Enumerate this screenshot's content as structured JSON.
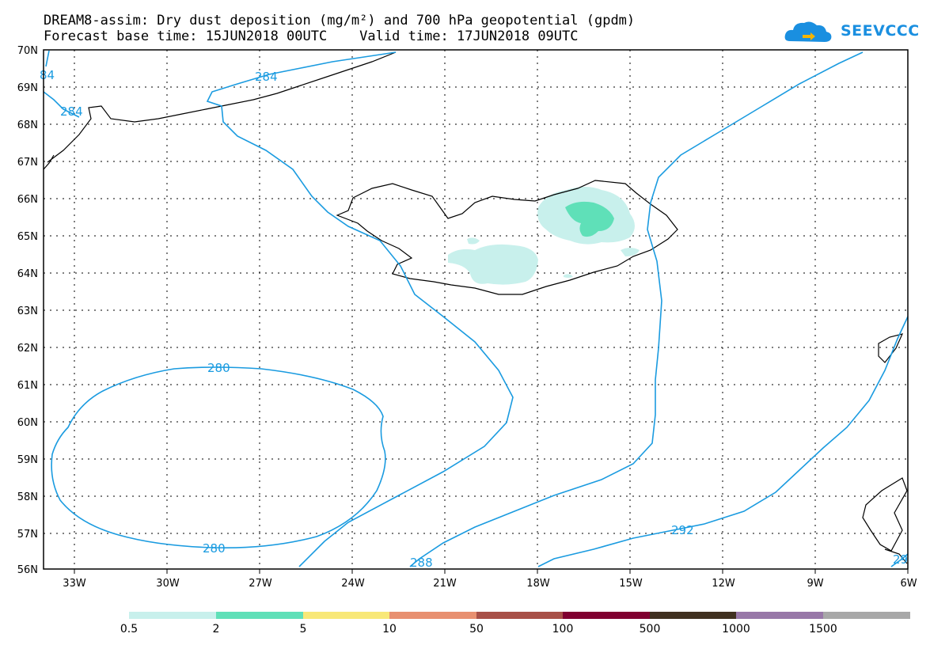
{
  "title": {
    "line1": "DREAM8-assim: Dry dust deposition (mg/m²) and 700 hPa geopotential (gpdm)",
    "line2": "Forecast base time: 15JUN2018 00UTC    Valid time: 17JUN2018 09UTC"
  },
  "logo": {
    "text": "SEEVCCC",
    "icon": "cloud-icon",
    "color": "#1a8fe0"
  },
  "map": {
    "lat_labels": [
      "70N",
      "69N",
      "68N",
      "67N",
      "66N",
      "65N",
      "64N",
      "63N",
      "62N",
      "61N",
      "60N",
      "59N",
      "58N",
      "57N",
      "56N"
    ],
    "lon_labels": [
      "33W",
      "30W",
      "27W",
      "24W",
      "21W",
      "18W",
      "15W",
      "12W",
      "9W",
      "6W"
    ],
    "contour_color": "#1a9be0",
    "contour_labels": [
      "284",
      "284",
      "84",
      "280",
      "280",
      "288",
      "292",
      "29"
    ]
  },
  "colorbar": {
    "colors": [
      "#c8f0ec",
      "#5fe0b8",
      "#f8e878",
      "#e89070",
      "#a85048",
      "#800030",
      "#403020",
      "#9878a8",
      "#a8a8a8"
    ],
    "labels": [
      "0.5",
      "2",
      "5",
      "10",
      "50",
      "100",
      "500",
      "1000",
      "1500"
    ]
  }
}
